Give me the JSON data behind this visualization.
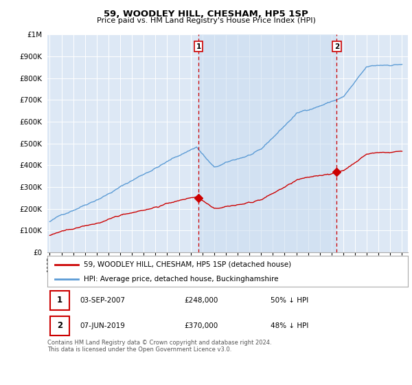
{
  "title": "59, WOODLEY HILL, CHESHAM, HP5 1SP",
  "subtitle": "Price paid vs. HM Land Registry's House Price Index (HPI)",
  "ylim": [
    0,
    1000000
  ],
  "xlim": [
    1994.8,
    2025.5
  ],
  "background_color": "#ffffff",
  "plot_bg_color": "#dde8f5",
  "grid_color": "#ffffff",
  "hpi_color": "#5b9bd5",
  "price_color": "#cc0000",
  "sale1_date": 2007.67,
  "sale1_price": 248000,
  "sale2_date": 2019.44,
  "sale2_price": 370000,
  "legend_label1": "59, WOODLEY HILL, CHESHAM, HP5 1SP (detached house)",
  "legend_label2": "HPI: Average price, detached house, Buckinghamshire",
  "table_row1": [
    "1",
    "03-SEP-2007",
    "£248,000",
    "50% ↓ HPI"
  ],
  "table_row2": [
    "2",
    "07-JUN-2019",
    "£370,000",
    "48% ↓ HPI"
  ],
  "footer": "Contains HM Land Registry data © Crown copyright and database right 2024.\nThis data is licensed under the Open Government Licence v3.0.",
  "yticks": [
    0,
    100000,
    200000,
    300000,
    400000,
    500000,
    600000,
    700000,
    800000,
    900000,
    1000000
  ],
  "ytick_labels": [
    "£0",
    "£100K",
    "£200K",
    "£300K",
    "£400K",
    "£500K",
    "£600K",
    "£700K",
    "£800K",
    "£900K",
    "£1M"
  ]
}
